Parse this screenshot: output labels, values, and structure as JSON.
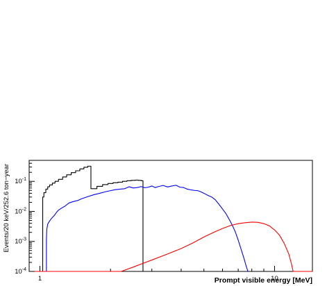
{
  "chart_data": {
    "type": "line",
    "title": "",
    "xlabel": "Prompt visible energy [MeV]",
    "ylabel": "Events/20 keV/252.6 ton−year",
    "x_scale": "log",
    "y_scale": "log",
    "xlim": [
      0.9,
      14.5
    ],
    "ylim": [
      0.0001,
      0.5
    ],
    "grid": false,
    "legend": "none",
    "x_ticks": [
      {
        "value": 1,
        "label": "1"
      },
      {
        "value": 10,
        "label": "10"
      }
    ],
    "y_ticks": [
      {
        "value": 0.1,
        "base": "10",
        "exp": "-1"
      },
      {
        "value": 0.01,
        "base": "10",
        "exp": "-2"
      },
      {
        "value": 0.001,
        "base": "10",
        "exp": "-3"
      },
      {
        "value": 0.0001,
        "base": "10",
        "exp": "-4"
      }
    ],
    "series": [
      {
        "style": "step",
        "color": "#000000",
        "points": [
          [
            1.028,
            0.0001
          ],
          [
            1.028,
            0.03
          ],
          [
            1.04,
            0.042
          ],
          [
            1.06,
            0.055
          ],
          [
            1.08,
            0.066
          ],
          [
            1.1,
            0.076
          ],
          [
            1.13,
            0.087
          ],
          [
            1.16,
            0.1
          ],
          [
            1.2,
            0.117
          ],
          [
            1.25,
            0.14
          ],
          [
            1.3,
            0.165
          ],
          [
            1.36,
            0.195
          ],
          [
            1.42,
            0.225
          ],
          [
            1.48,
            0.26
          ],
          [
            1.54,
            0.295
          ],
          [
            1.6,
            0.32
          ],
          [
            1.65,
            0.32
          ],
          [
            1.65,
            0.057
          ],
          [
            1.75,
            0.068
          ],
          [
            1.85,
            0.078
          ],
          [
            1.95,
            0.085
          ],
          [
            2.05,
            0.09
          ],
          [
            2.15,
            0.094
          ],
          [
            2.25,
            0.1
          ],
          [
            2.35,
            0.105
          ],
          [
            2.45,
            0.108
          ],
          [
            2.55,
            0.11
          ],
          [
            2.62,
            0.108
          ],
          [
            2.7,
            0.105
          ],
          [
            2.75,
            0.102
          ],
          [
            2.75,
            0.0001
          ]
        ]
      },
      {
        "style": "line",
        "color": "#0000ff",
        "points": [
          [
            1.066,
            0.0001
          ],
          [
            1.066,
            0.0011
          ],
          [
            1.07,
            0.0025
          ],
          [
            1.08,
            0.0038
          ],
          [
            1.1,
            0.0048
          ],
          [
            1.12,
            0.0058
          ],
          [
            1.15,
            0.0072
          ],
          [
            1.18,
            0.0095
          ],
          [
            1.2,
            0.011
          ],
          [
            1.24,
            0.013
          ],
          [
            1.28,
            0.015
          ],
          [
            1.33,
            0.019
          ],
          [
            1.38,
            0.021
          ],
          [
            1.45,
            0.023
          ],
          [
            1.5,
            0.026
          ],
          [
            1.6,
            0.031
          ],
          [
            1.7,
            0.036
          ],
          [
            1.8,
            0.04
          ],
          [
            1.9,
            0.045
          ],
          [
            2.0,
            0.049
          ],
          [
            2.1,
            0.053
          ],
          [
            2.2,
            0.055
          ],
          [
            2.3,
            0.057
          ],
          [
            2.4,
            0.066
          ],
          [
            2.5,
            0.06
          ],
          [
            2.6,
            0.062
          ],
          [
            2.7,
            0.067
          ],
          [
            2.8,
            0.061
          ],
          [
            2.9,
            0.064
          ],
          [
            3.0,
            0.07
          ],
          [
            3.1,
            0.062
          ],
          [
            3.2,
            0.067
          ],
          [
            3.35,
            0.073
          ],
          [
            3.5,
            0.065
          ],
          [
            3.65,
            0.07
          ],
          [
            3.8,
            0.074
          ],
          [
            3.95,
            0.064
          ],
          [
            4.1,
            0.062
          ],
          [
            4.25,
            0.055
          ],
          [
            4.4,
            0.052
          ],
          [
            4.55,
            0.05
          ],
          [
            4.7,
            0.049
          ],
          [
            4.85,
            0.045
          ],
          [
            5.0,
            0.04
          ],
          [
            5.2,
            0.034
          ],
          [
            5.4,
            0.03
          ],
          [
            5.6,
            0.024
          ],
          [
            5.8,
            0.017
          ],
          [
            6.0,
            0.012
          ],
          [
            6.2,
            0.0085
          ],
          [
            6.4,
            0.0055
          ],
          [
            6.6,
            0.0035
          ],
          [
            6.8,
            0.0021
          ],
          [
            7.0,
            0.0011
          ],
          [
            7.2,
            0.00055
          ],
          [
            7.4,
            0.00028
          ],
          [
            7.55,
            0.00016
          ],
          [
            7.7,
            0.0001
          ]
        ]
      },
      {
        "style": "line",
        "color": "#ff0000",
        "points": [
          [
            0.9,
            0.0001
          ],
          [
            2.22,
            0.0001
          ],
          [
            2.5,
            0.00014
          ],
          [
            3.0,
            0.00024
          ],
          [
            3.5,
            0.00038
          ],
          [
            4.0,
            0.00058
          ],
          [
            4.5,
            0.0009
          ],
          [
            5.0,
            0.0014
          ],
          [
            5.5,
            0.002
          ],
          [
            6.0,
            0.0027
          ],
          [
            6.5,
            0.0034
          ],
          [
            7.0,
            0.0039
          ],
          [
            7.5,
            0.0042
          ],
          [
            8.0,
            0.0044
          ],
          [
            8.5,
            0.0043
          ],
          [
            9.0,
            0.0039
          ],
          [
            9.5,
            0.0033
          ],
          [
            10.0,
            0.0024
          ],
          [
            10.5,
            0.0016
          ],
          [
            11.0,
            0.00085
          ],
          [
            11.5,
            0.00038
          ],
          [
            11.8,
            0.00018
          ],
          [
            12.0,
            0.0001
          ],
          [
            14.5,
            0.0001
          ]
        ]
      }
    ]
  }
}
